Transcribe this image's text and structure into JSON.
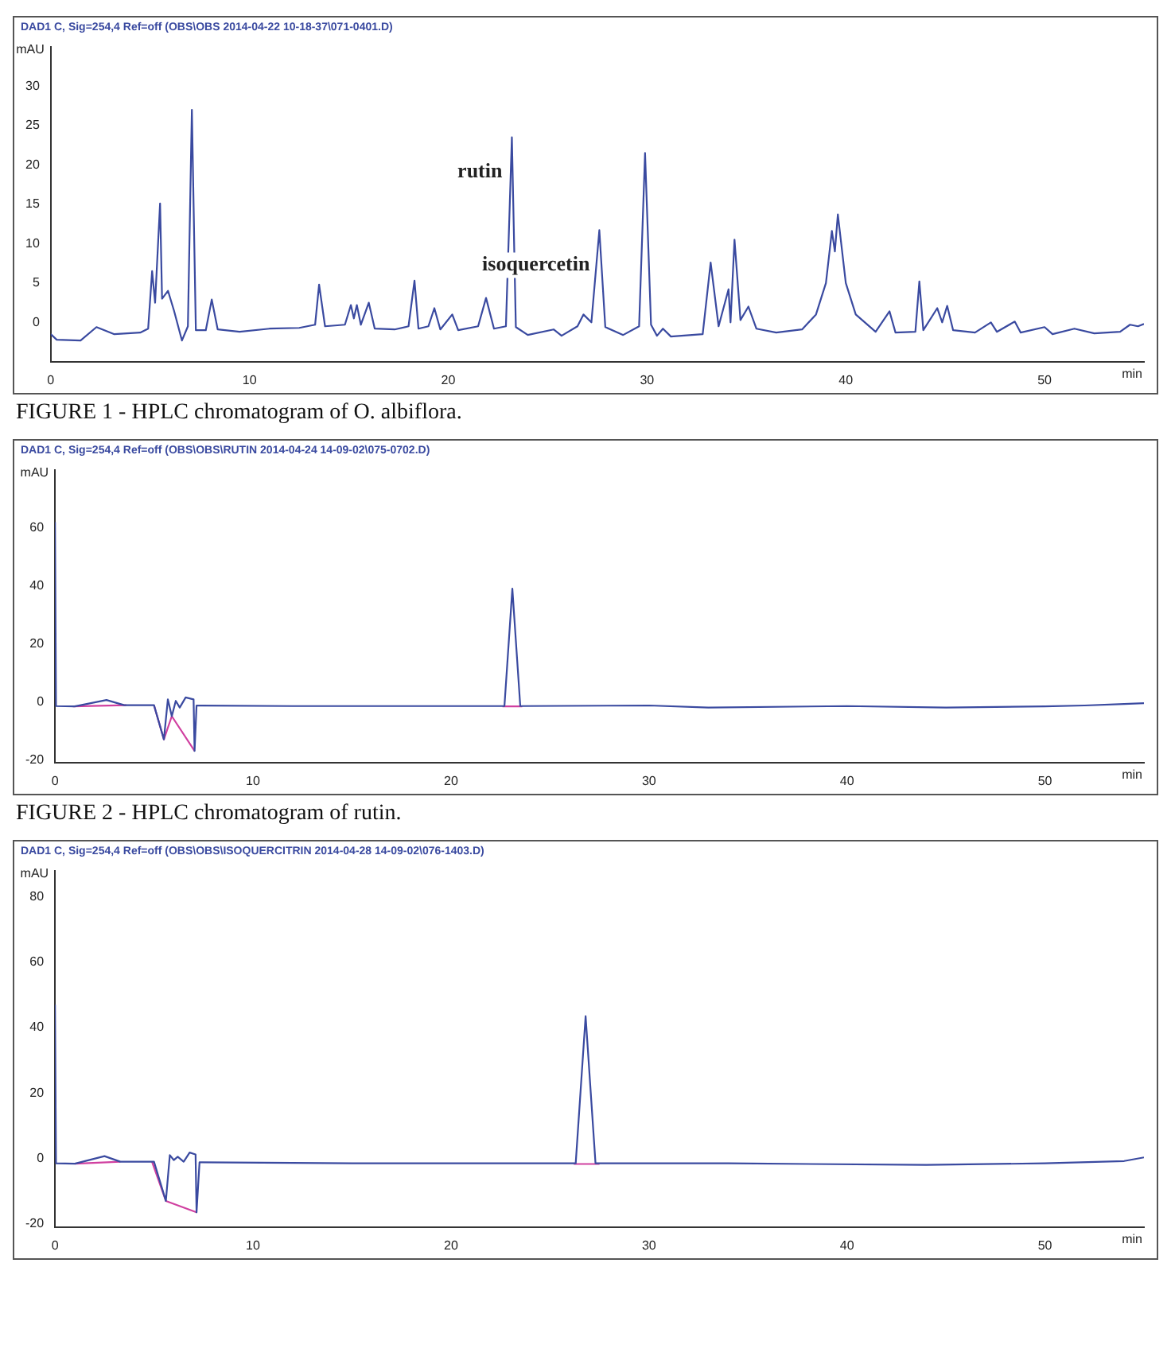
{
  "chart_data": [
    {
      "type": "line",
      "title": "DAD1 C, Sig=254,4 Ref=off (OBS\\OBS 2014-04-22 10-18-37\\071-0401.D)",
      "xlabel": "min",
      "ylabel": "mAU",
      "xlim": [
        0,
        55
      ],
      "xticks": [
        0,
        10,
        20,
        30,
        40,
        50
      ],
      "ylim": [
        -5,
        35
      ],
      "yticks": [
        0,
        5,
        10,
        15,
        20,
        25,
        30
      ],
      "grid": false,
      "legend": false,
      "marker": "none",
      "line_style": "solid",
      "annotations": [
        {
          "text": "rutin",
          "x": 23.2,
          "y": 23.5
        },
        {
          "text": "isoquercetin",
          "x": 27.6,
          "y": 11.7
        },
        "FIGURE 1 - HPLC chromatogram of O. albiflora."
      ],
      "series": [
        {
          "color": "#3a4aa0",
          "x": [
            0,
            0.3,
            1.5,
            2.3,
            3.2,
            4.5,
            4.9,
            5.1,
            5.25,
            5.5,
            5.6,
            5.9,
            6.2,
            6.6,
            6.9,
            7.1,
            7.3,
            7.8,
            8.1,
            8.4,
            9.5,
            11,
            12.5,
            13.3,
            13.5,
            13.8,
            14.8,
            15.1,
            15.25,
            15.4,
            15.6,
            16,
            16.3,
            17.3,
            18,
            18.3,
            18.5,
            19,
            19.3,
            19.6,
            20.2,
            20.5,
            21.5,
            21.9,
            22.3,
            22.9,
            23.2,
            23.4,
            24,
            25.3,
            25.7,
            26.5,
            26.8,
            27.2,
            27.6,
            27.9,
            28.8,
            29.6,
            29.9,
            30.2,
            30.5,
            30.8,
            31.2,
            32.8,
            33.2,
            33.6,
            34.1,
            34.2,
            34.4,
            34.7,
            35.1,
            35.5,
            36.5,
            37.8,
            38.5,
            39.0,
            39.3,
            39.45,
            39.6,
            40,
            40.5,
            41.5,
            42.2,
            42.5,
            43.5,
            43.7,
            43.9,
            44.6,
            44.85,
            45.1,
            45.4,
            46.5,
            47.3,
            47.6,
            48.5,
            48.8,
            50,
            50.4,
            51.5,
            52.5,
            53.8,
            54.3,
            54.7,
            55
          ],
          "values": [
            -1.5,
            -2.2,
            -2.3,
            -0.6,
            -1.5,
            -1.3,
            -0.8,
            6.5,
            2.5,
            15.1,
            3,
            4,
            1.5,
            -2.3,
            -0.5,
            27,
            -1,
            -1,
            2.9,
            -0.9,
            -1.2,
            -0.8,
            -0.7,
            -0.3,
            4.8,
            -0.5,
            -0.3,
            2.2,
            0.5,
            2.2,
            -0.3,
            2.5,
            -0.8,
            -0.9,
            -0.5,
            5.3,
            -0.8,
            -0.5,
            1.8,
            -0.9,
            1,
            -1,
            -0.5,
            3.1,
            -0.8,
            -0.5,
            23.5,
            -0.6,
            -1.6,
            -0.9,
            -1.7,
            -0.5,
            1,
            0,
            11.7,
            -0.6,
            -1.6,
            -0.5,
            21.5,
            -0.3,
            -1.7,
            -0.8,
            -1.8,
            -1.5,
            7.6,
            -0.5,
            4.2,
            0,
            10.5,
            0.3,
            2,
            -0.8,
            -1.3,
            -0.9,
            1,
            5,
            11.6,
            9,
            13.7,
            5,
            1,
            -1.2,
            1.4,
            -1.3,
            -1.2,
            5.2,
            -1,
            1.8,
            0,
            2.1,
            -1,
            -1.3,
            0,
            -1.2,
            0.1,
            -1.3,
            -0.6,
            -1.5,
            -0.8,
            -1.4,
            -1.2,
            -0.3,
            -0.5,
            -0.2
          ]
        }
      ]
    },
    {
      "type": "line",
      "title": "DAD1 C, Sig=254,4 Ref=off (OBS\\OBS\\RUTIN 2014-04-24 14-09-02\\075-0702.D)",
      "xlabel": "min",
      "ylabel": "mAU",
      "xlim": [
        0,
        55
      ],
      "xticks": [
        0,
        10,
        20,
        30,
        40,
        50
      ],
      "ylim": [
        -21,
        80
      ],
      "yticks": [
        -20,
        0,
        20,
        40,
        60
      ],
      "grid": false,
      "legend": false,
      "marker": "none",
      "line_style": "solid",
      "annotations": [
        "FIGURE 2 - HPLC chromatogram of rutin."
      ],
      "series": [
        {
          "color": "#3a4aa0",
          "x": [
            0,
            0.05,
            1,
            2.6,
            3.5,
            5,
            5.5,
            5.7,
            5.9,
            6.1,
            6.3,
            6.6,
            7.0,
            7.05,
            7.15,
            12,
            22.7,
            23.1,
            23.5,
            30,
            33,
            40,
            45,
            50,
            52,
            54,
            55
          ],
          "values": [
            62,
            -1.5,
            -1.6,
            0.6,
            -1.2,
            -1.2,
            -13,
            0.8,
            -5,
            0.3,
            -2,
            1.5,
            0.8,
            -17,
            -1.3,
            -1.5,
            -1.5,
            39,
            -1.5,
            -1.3,
            -2,
            -1.5,
            -2,
            -1.6,
            -1.3,
            -0.8,
            -0.5
          ]
        },
        {
          "color": "#d040a0",
          "x": [
            0.9,
            3.6,
            null,
            5,
            5.5,
            5.9,
            7.05,
            null,
            22.6,
            23.6
          ],
          "values": [
            -1.6,
            -1.2,
            null,
            -1.2,
            -13,
            -5,
            -17,
            null,
            -1.6,
            -1.6
          ]
        }
      ]
    },
    {
      "type": "line",
      "title": "DAD1 C, Sig=254,4 Ref=off (OBS\\OBS\\ISOQUERCITRIN 2014-04-28 14-09-02\\076-1403.D)",
      "xlabel": "min",
      "ylabel": "mAU",
      "xlim": [
        0,
        55
      ],
      "xticks": [
        0,
        10,
        20,
        30,
        40,
        50
      ],
      "ylim": [
        -21,
        88
      ],
      "yticks": [
        -20,
        0,
        20,
        40,
        60,
        80
      ],
      "grid": false,
      "legend": false,
      "marker": "none",
      "line_style": "solid",
      "series": [
        {
          "color": "#3a4aa0",
          "x": [
            0,
            0.05,
            1,
            2.5,
            3.3,
            5,
            5.6,
            5.8,
            6.0,
            6.2,
            6.5,
            6.8,
            7.1,
            7.15,
            7.3,
            15,
            26.3,
            26.8,
            27.3,
            34,
            44,
            50,
            54,
            55
          ],
          "values": [
            47,
            -1.5,
            -1.6,
            0.7,
            -1,
            -1,
            -13,
            1,
            -0.5,
            0.5,
            -1,
            1.8,
            1.2,
            -16.5,
            -1.2,
            -1.5,
            -1.5,
            43.5,
            -1.5,
            -1.5,
            -2,
            -1.5,
            -0.8,
            0.3
          ]
        },
        {
          "color": "#d040a0",
          "x": [
            1,
            3.3,
            null,
            4.9,
            5.6,
            7.15,
            null,
            26.2,
            27.5
          ],
          "values": [
            -1.6,
            -1,
            null,
            -1,
            -13,
            -16.5,
            null,
            -1.7,
            -1.7
          ]
        }
      ]
    }
  ]
}
